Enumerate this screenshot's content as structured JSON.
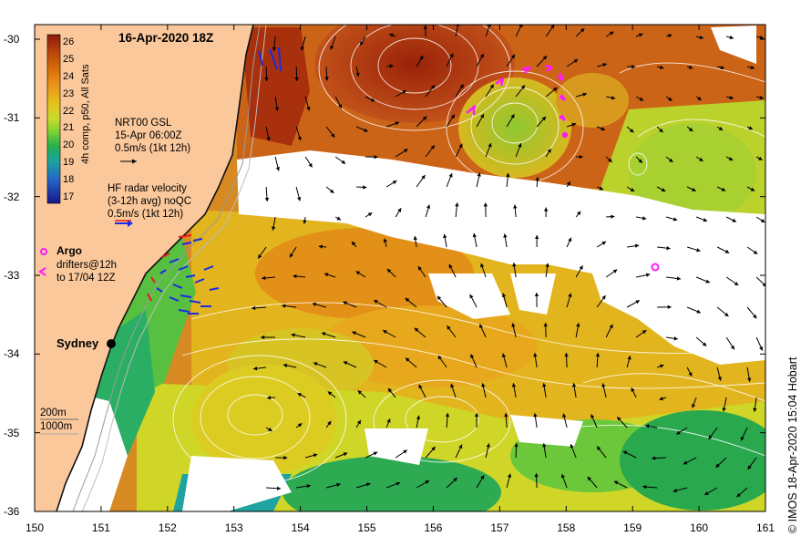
{
  "title": "16-Apr-2020 18Z",
  "credit": "© IMOS 18-Apr-2020 15:04 Hobart",
  "colorbar": {
    "label": "4h comp, p50, All Sats",
    "ticks": [
      "26",
      "25",
      "24",
      "23",
      "22",
      "21",
      "20",
      "19",
      "18",
      "17"
    ],
    "colors": [
      "#8b1a0c",
      "#b9420b",
      "#d86c0a",
      "#e99419",
      "#e8bf1c",
      "#c8dc2a",
      "#78d035",
      "#26b04d",
      "#1aa39d",
      "#2466c8",
      "#17178a"
    ]
  },
  "legend": {
    "gsl": {
      "line1": "NRT00 GSL",
      "line2": "15-Apr 06:00Z",
      "line3": "0.5m/s (1kt 12h)"
    },
    "hf": {
      "line1": "HF radar velocity",
      "line2": "(3-12h avg) noQC",
      "line3": "0.5m/s (1kt 12h)"
    },
    "argo": {
      "title": "Argo",
      "line1": "drifters@12h",
      "line2": "to 17/04 12Z"
    },
    "depth": {
      "line1": "200m",
      "line2": "1000m"
    }
  },
  "place": {
    "name": "Sydney"
  },
  "axes": {
    "x_ticks": [
      "150",
      "151",
      "152",
      "153",
      "154",
      "155",
      "156",
      "157",
      "158",
      "159",
      "160",
      "161"
    ],
    "y_ticks": [
      "-30",
      "-31",
      "-32",
      "-33",
      "-34",
      "-35",
      "-36"
    ]
  },
  "colors": {
    "land": "#fac89b",
    "cloud": "#ffffff",
    "warm": "#c9581c",
    "hot": "#a02a0a",
    "yellow": "#e6d41e",
    "green": "#2aa84e",
    "argo": "#ff1aff",
    "hf_radar": "#1a2ae6"
  }
}
